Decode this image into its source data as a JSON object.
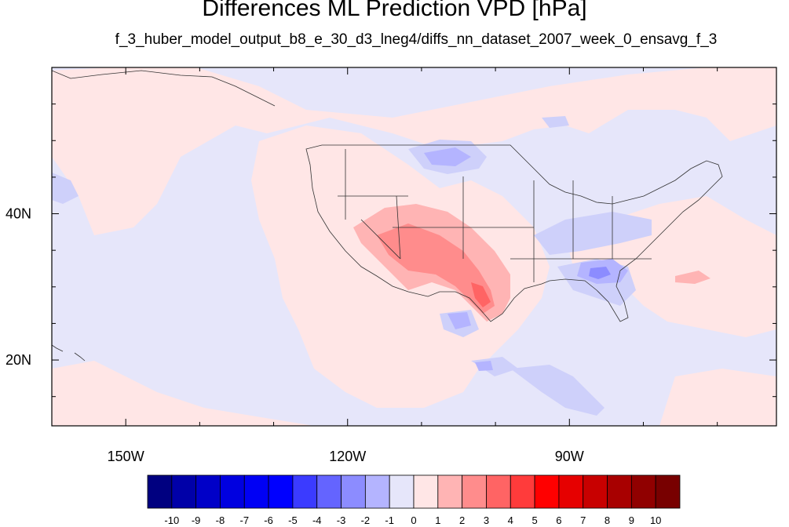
{
  "title": "Differences ML Prediction VPD [hPa]",
  "subtitle": "f_3_huber_model_output_b8_e_30_d3_lneg4/diffs_nn_dataset_2007_week_0_ensavg_f_3",
  "map": {
    "lon_range": [
      -160,
      -62
    ],
    "lat_range": [
      11,
      60
    ],
    "lon_labels": [
      {
        "lon": -150,
        "text": "150W"
      },
      {
        "lon": -120,
        "text": "120W"
      },
      {
        "lon": -90,
        "text": "90W"
      }
    ],
    "lat_labels": [
      {
        "lat": 40,
        "text": "40N"
      },
      {
        "lat": 20,
        "text": "20N"
      }
    ],
    "background_color": "#e6e6fa"
  },
  "colorbar": {
    "colors": [
      "#000080",
      "#0000a8",
      "#0000c8",
      "#0000e0",
      "#0000f5",
      "#0000ff",
      "#3b3bff",
      "#6464ff",
      "#8c8cff",
      "#b4b4ff",
      "#e6e6fa",
      "#ffe6e6",
      "#ffb4b4",
      "#ff8c8c",
      "#ff6464",
      "#ff3b3b",
      "#ff0000",
      "#e60000",
      "#c80000",
      "#a80000",
      "#900000",
      "#780000"
    ],
    "labels": [
      "-10",
      "-9",
      "-8",
      "-7",
      "-6",
      "-5",
      "-4",
      "-3",
      "-2",
      "-1",
      "0",
      "1",
      "2",
      "3",
      "4",
      "5",
      "6",
      "7",
      "8",
      "9",
      "10"
    ]
  }
}
